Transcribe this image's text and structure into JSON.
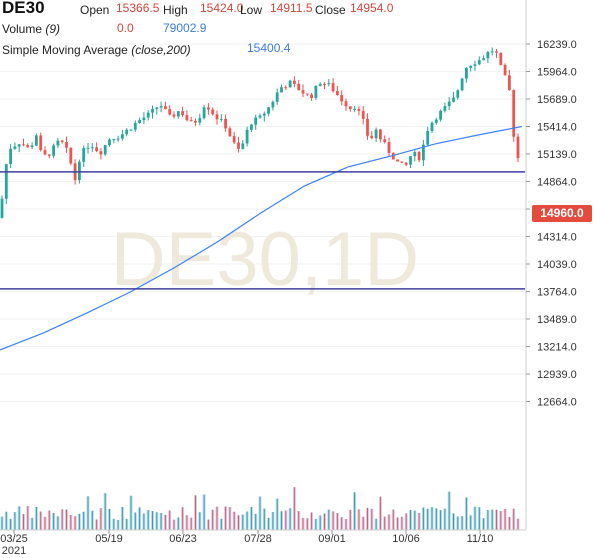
{
  "header": {
    "symbol": "DE30",
    "open_label": "Open",
    "open": "15366.5",
    "high_label": "High",
    "high": "15424.0",
    "low_label": "Low",
    "low": "14911.5",
    "close_label": "Close",
    "close": "14954.0",
    "volume_label": "Volume",
    "volume_param": "(9)",
    "volume_value1": "0.0",
    "volume_value2": "79002.9",
    "sma_label": "Simple Moving Average",
    "sma_param": "(close,200)",
    "sma_value": "15400.4"
  },
  "watermark": "DE30,1D",
  "price_tag": "14960.0",
  "colors": {
    "up": "#26a69a",
    "down": "#ef5350",
    "sma": "#3b82f6",
    "hline": "#3f3fa0",
    "volume": "#c6d4f5"
  },
  "chart_data": {
    "type": "candlestick",
    "y_ticks": [
      "16239.0",
      "15964.0",
      "15689.0",
      "15414.0",
      "15139.0",
      "14864.0",
      "14589.0",
      "14314.0",
      "14039.0",
      "13764.0",
      "13489.0",
      "13214.0",
      "12939.0",
      "12664.0"
    ],
    "ylim": [
      12580,
      16330
    ],
    "x_ticks": [
      "03/25",
      "05/19",
      "06/23",
      "07/28",
      "09/01",
      "10/06",
      "11/10"
    ],
    "x_year": "2021",
    "horizontal_lines": [
      14960.0,
      13790.0
    ],
    "sma_series": [
      13180,
      13350,
      13550,
      13760,
      14000,
      14260,
      14550,
      14820,
      15010,
      15120,
      15240,
      15330,
      15414
    ]
  }
}
